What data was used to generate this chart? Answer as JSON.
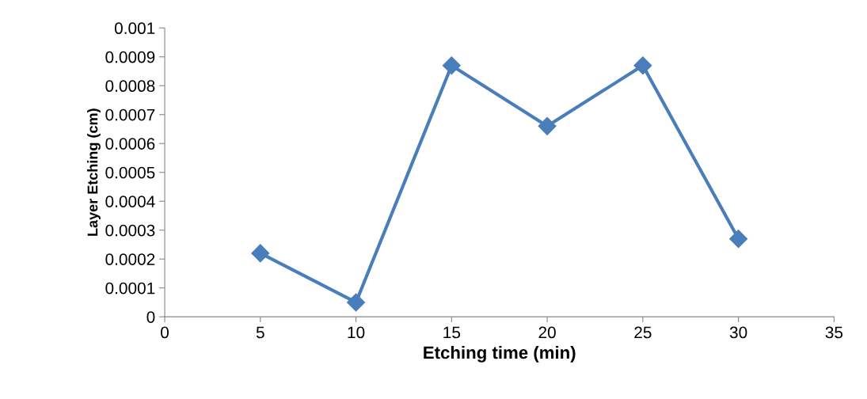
{
  "chart_data": {
    "type": "line",
    "xlabel": "Etching time (min)",
    "ylabel": "Layer Etching (cm)",
    "x": [
      5,
      10,
      15,
      20,
      25,
      30
    ],
    "series": [
      {
        "color": "#4a7ebb",
        "values": [
          0.00022,
          5e-05,
          0.00087,
          0.00066,
          0.00087,
          0.00027
        ]
      }
    ],
    "xlim": [
      0,
      35
    ],
    "xticks": [
      0,
      5,
      10,
      15,
      20,
      25,
      30,
      35
    ],
    "ylim": [
      0,
      0.001
    ],
    "yticks": [
      0,
      0.0001,
      0.0002,
      0.0003,
      0.0004,
      0.0005,
      0.0006,
      0.0007,
      0.0008,
      0.0009,
      0.001
    ],
    "grid": false,
    "marker": "diamond",
    "line_style": "solid"
  }
}
